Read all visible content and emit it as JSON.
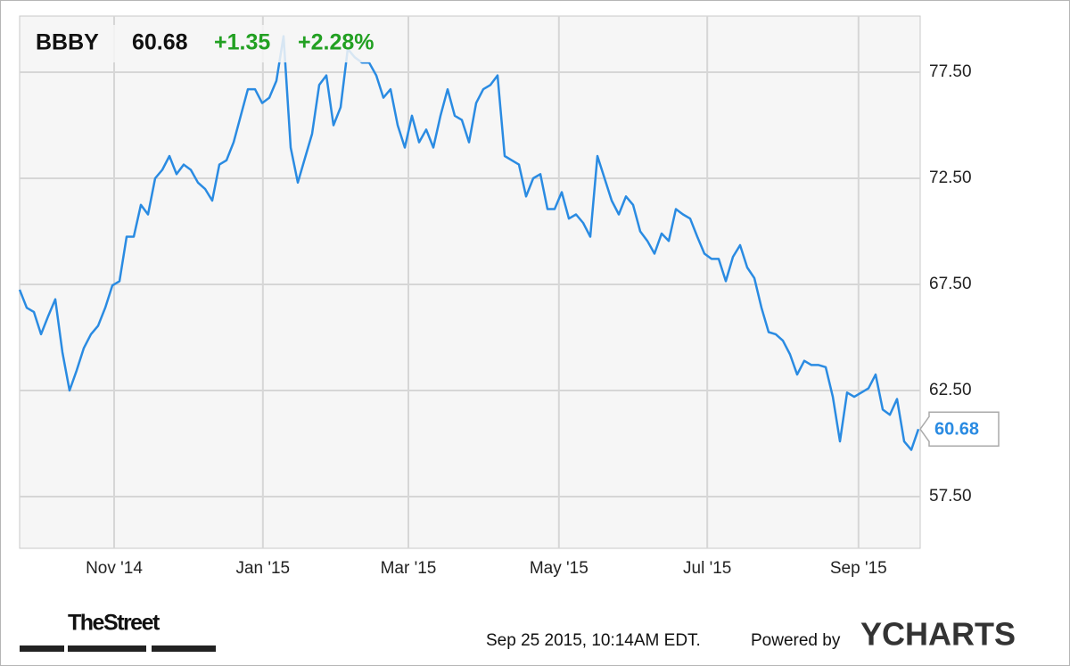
{
  "chart_data": {
    "type": "line",
    "ticker": "BBBY",
    "price": 60.68,
    "change": "+1.35",
    "change_percent": "+2.28%",
    "timestamp": "Sep 25 2015, 10:14AM EDT.",
    "powered_by": "Powered by",
    "brand": "YCHARTS",
    "source_logo": "TheStreet",
    "grid": true,
    "series": [
      {
        "name": "BBBY",
        "color": "#2a8be2",
        "values": [
          67.25,
          66.4,
          66.2,
          65.15,
          66.0,
          66.8,
          64.3,
          62.5,
          63.45,
          64.5,
          65.15,
          65.55,
          66.4,
          67.45,
          67.65,
          69.75,
          69.75,
          71.25,
          70.8,
          72.5,
          72.9,
          73.55,
          72.7,
          73.15,
          72.9,
          72.3,
          72.0,
          71.45,
          73.15,
          73.35,
          74.2,
          75.45,
          76.7,
          76.7,
          76.05,
          76.3,
          77.1,
          79.2,
          73.95,
          72.3,
          73.45,
          74.6,
          76.9,
          77.35,
          75.0,
          75.85,
          78.6,
          78.2,
          77.95,
          77.95,
          77.35,
          76.3,
          76.7,
          75.0,
          73.95,
          75.45,
          74.2,
          74.8,
          73.95,
          75.45,
          76.7,
          75.45,
          75.25,
          74.2,
          76.05,
          76.7,
          76.9,
          77.35,
          73.55,
          73.35,
          73.15,
          71.65,
          72.5,
          72.7,
          71.05,
          71.05,
          71.85,
          70.6,
          70.8,
          70.4,
          69.75,
          73.55,
          72.5,
          71.45,
          70.8,
          71.65,
          71.25,
          70.0,
          69.55,
          68.95,
          69.9,
          69.55,
          71.05,
          70.8,
          70.6,
          69.75,
          68.95,
          68.7,
          68.7,
          67.65,
          68.8,
          69.35,
          68.3,
          67.8,
          66.4,
          65.25,
          65.15,
          64.85,
          64.2,
          63.25,
          63.9,
          63.7,
          63.7,
          63.6,
          62.2,
          60.1,
          62.4,
          62.2,
          62.4,
          62.6,
          63.25,
          61.6,
          61.35,
          62.1,
          60.1,
          59.7,
          60.68
        ]
      }
    ],
    "xlim": [
      0,
      126.25
    ],
    "xticks": [
      {
        "value": 13.25,
        "label": "Nov '14"
      },
      {
        "value": 34.1,
        "label": "Jan '15"
      },
      {
        "value": 54.5,
        "label": "Mar '15"
      },
      {
        "value": 75.6,
        "label": "May '15"
      },
      {
        "value": 96.4,
        "label": "Jul '15"
      },
      {
        "value": 117.6,
        "label": "Sep '15"
      }
    ],
    "ylim": [
      55.06,
      80.15
    ],
    "yticks": [
      {
        "value": 57.5,
        "label": "57.50"
      },
      {
        "value": 62.5,
        "label": "62.50"
      },
      {
        "value": 67.5,
        "label": "67.50"
      },
      {
        "value": 72.5,
        "label": "72.50"
      },
      {
        "value": 77.5,
        "label": "77.50"
      }
    ]
  }
}
